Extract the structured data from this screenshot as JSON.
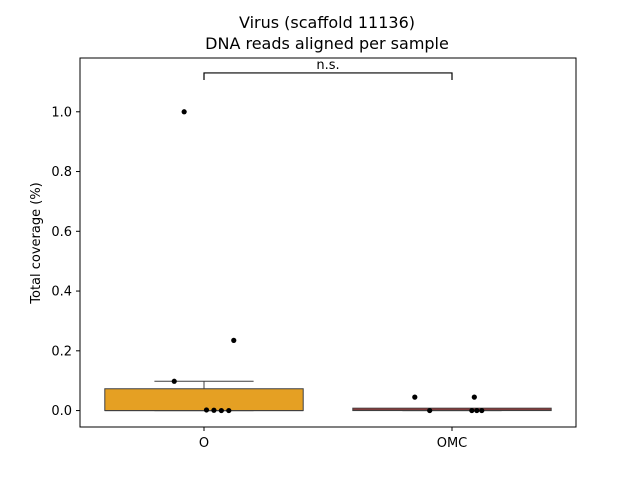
{
  "chart_data": {
    "type": "box",
    "title_line1": "Virus (scaffold 11136)",
    "title_line2": "DNA reads aligned per sample",
    "xlabel": "",
    "ylabel": "Total coverage (%)",
    "ylim": [
      -0.055,
      1.18
    ],
    "yticks": [
      0.0,
      0.2,
      0.4,
      0.6,
      0.8,
      1.0
    ],
    "ytick_labels": [
      "0.0",
      "0.2",
      "0.4",
      "0.6",
      "0.8",
      "1.0"
    ],
    "categories": [
      "O",
      "OMC"
    ],
    "boxes": [
      {
        "category": "O",
        "color": "#E5A023",
        "q1": 0.0,
        "median": 0.0,
        "q3": 0.073,
        "whisker_low": 0.0,
        "whisker_high": 0.098
      },
      {
        "category": "OMC",
        "color": "#C0393A",
        "q1": 0.0,
        "median": 0.002,
        "q3": 0.008,
        "whisker_low": 0.0,
        "whisker_high": 0.008
      }
    ],
    "points": [
      {
        "category": "O",
        "jitter": -0.08,
        "y": 1.0
      },
      {
        "category": "O",
        "jitter": 0.12,
        "y": 0.235
      },
      {
        "category": "O",
        "jitter": -0.12,
        "y": 0.098
      },
      {
        "category": "O",
        "jitter": 0.01,
        "y": 0.002
      },
      {
        "category": "O",
        "jitter": 0.04,
        "y": 0.001
      },
      {
        "category": "O",
        "jitter": 0.07,
        "y": 0.0
      },
      {
        "category": "O",
        "jitter": 0.1,
        "y": 0.0
      },
      {
        "category": "OMC",
        "jitter": -0.15,
        "y": 0.045
      },
      {
        "category": "OMC",
        "jitter": 0.09,
        "y": 0.045
      },
      {
        "category": "OMC",
        "jitter": -0.09,
        "y": 0.0
      },
      {
        "category": "OMC",
        "jitter": 0.08,
        "y": 0.0
      },
      {
        "category": "OMC",
        "jitter": 0.1,
        "y": 0.0
      },
      {
        "category": "OMC",
        "jitter": 0.12,
        "y": 0.0
      }
    ],
    "significance": {
      "from": "O",
      "to": "OMC",
      "label": "n.s.",
      "y": 1.13
    },
    "grid": false
  }
}
